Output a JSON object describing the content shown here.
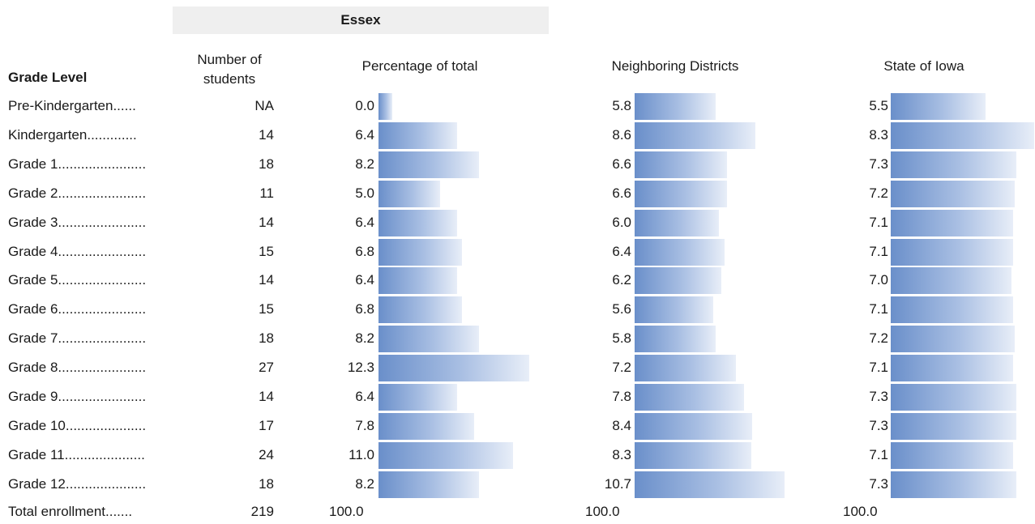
{
  "group_title": "Essex",
  "columns": {
    "grade_level": "Grade Level",
    "num_students": "Number of students",
    "pct_total": "Percentage of total",
    "neighboring": "Neighboring Districts",
    "iowa": "State of Iowa"
  },
  "rows": [
    {
      "label": "Pre-Kindergarten......",
      "students": "NA",
      "essex": "0.0",
      "neighbor": "5.8",
      "iowa": "5.5"
    },
    {
      "label": "Kindergarten.............",
      "students": "14",
      "essex": "6.4",
      "neighbor": "8.6",
      "iowa": "8.3"
    },
    {
      "label": "Grade 1.......................",
      "students": "18",
      "essex": "8.2",
      "neighbor": "6.6",
      "iowa": "7.3"
    },
    {
      "label": "Grade 2.......................",
      "students": "11",
      "essex": "5.0",
      "neighbor": "6.6",
      "iowa": "7.2"
    },
    {
      "label": "Grade 3.......................",
      "students": "14",
      "essex": "6.4",
      "neighbor": "6.0",
      "iowa": "7.1"
    },
    {
      "label": "Grade 4.......................",
      "students": "15",
      "essex": "6.8",
      "neighbor": "6.4",
      "iowa": "7.1"
    },
    {
      "label": "Grade 5.......................",
      "students": "14",
      "essex": "6.4",
      "neighbor": "6.2",
      "iowa": "7.0"
    },
    {
      "label": "Grade 6.......................",
      "students": "15",
      "essex": "6.8",
      "neighbor": "5.6",
      "iowa": "7.1"
    },
    {
      "label": "Grade 7.......................",
      "students": "18",
      "essex": "8.2",
      "neighbor": "5.8",
      "iowa": "7.2"
    },
    {
      "label": "Grade 8.......................",
      "students": "27",
      "essex": "12.3",
      "neighbor": "7.2",
      "iowa": "7.1"
    },
    {
      "label": "Grade 9.......................",
      "students": "14",
      "essex": "6.4",
      "neighbor": "7.8",
      "iowa": "7.3"
    },
    {
      "label": "Grade 10.....................",
      "students": "17",
      "essex": "7.8",
      "neighbor": "8.4",
      "iowa": "7.3"
    },
    {
      "label": "Grade 11.....................",
      "students": "24",
      "essex": "11.0",
      "neighbor": "8.3",
      "iowa": "7.1"
    },
    {
      "label": "Grade 12.....................",
      "students": "18",
      "essex": "8.2",
      "neighbor": "10.7",
      "iowa": "7.3"
    }
  ],
  "total": {
    "label": "Total enrollment.......",
    "students": "219",
    "essex": "100.0",
    "neighbor": "100.0",
    "iowa": "100.0"
  },
  "chart_data": {
    "type": "bar",
    "categories": [
      "Pre-Kindergarten",
      "Kindergarten",
      "Grade 1",
      "Grade 2",
      "Grade 3",
      "Grade 4",
      "Grade 5",
      "Grade 6",
      "Grade 7",
      "Grade 8",
      "Grade 9",
      "Grade 10",
      "Grade 11",
      "Grade 12"
    ],
    "series": [
      {
        "name": "Percentage of total",
        "values": [
          0.0,
          6.4,
          8.2,
          5.0,
          6.4,
          6.8,
          6.4,
          6.8,
          8.2,
          12.3,
          6.4,
          7.8,
          11.0,
          8.2
        ]
      },
      {
        "name": "Neighboring Districts",
        "values": [
          5.8,
          8.6,
          6.6,
          6.6,
          6.0,
          6.4,
          6.2,
          5.6,
          5.8,
          7.2,
          7.8,
          8.4,
          8.3,
          10.7
        ]
      },
      {
        "name": "State of Iowa",
        "values": [
          5.5,
          8.3,
          7.3,
          7.2,
          7.1,
          7.1,
          7.0,
          7.1,
          7.2,
          7.1,
          7.3,
          7.3,
          7.1,
          7.3
        ]
      }
    ],
    "orientation": "horizontal",
    "bar_color_start": "#6a8fca",
    "bar_color_end": "#e8eef8"
  }
}
